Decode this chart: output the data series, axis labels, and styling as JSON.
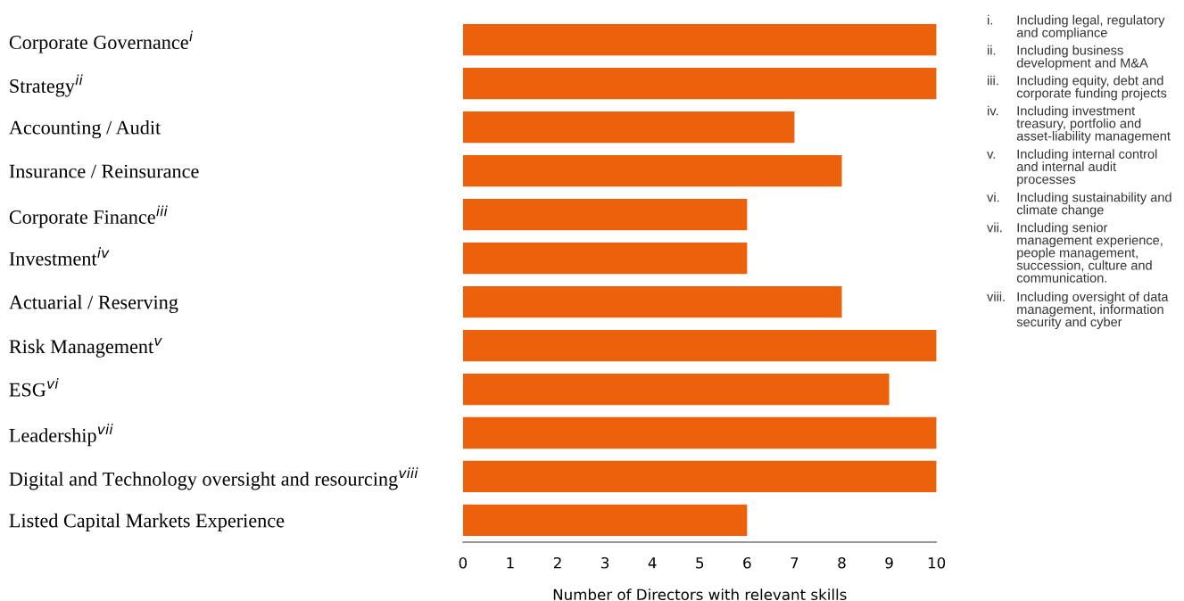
{
  "chart_data": {
    "type": "bar",
    "orientation": "horizontal",
    "categories": [
      "Corporate Governance$^{i}$",
      "Strategy$^{ii}$",
      "Accounting / Audit",
      "Insurance / Reinsurance",
      "Corporate Finance$^{iii}$",
      "Investment$^{iv}$",
      "Actuarial / Reserving",
      "Risk Management$^{v}$",
      "ESG$^{vi}$",
      "Leadership$^{vii}$",
      "Digital and Technology oversight and resourcing$^{viii}$",
      "Listed Capital Markets Experience"
    ],
    "values": [
      10,
      10,
      7,
      8,
      6,
      6,
      8,
      10,
      9,
      10,
      10,
      6
    ],
    "color": "#eb610c",
    "xlim": [
      0,
      10
    ],
    "xticks": [
      0,
      1,
      2,
      3,
      4,
      5,
      6,
      7,
      8,
      9,
      10
    ],
    "xlabel": "Number of Directors with relevant skills",
    "grid": false,
    "legend": false,
    "annotations": [
      "i. Including legal, regulatory and compliance",
      "ii. Including business development and M&A",
      "iii. Including equity, debt and corporate funding projects",
      "iv. Including investment treasury, portfolio and asset-liability management",
      "v. Including internal control and internal audit processes",
      "vi. Including sustainability and climate change",
      "vii. Including senior management experience, people management, succession, culture and communication.",
      "viii. Including oversight of data management, information security and cyber"
    ]
  }
}
